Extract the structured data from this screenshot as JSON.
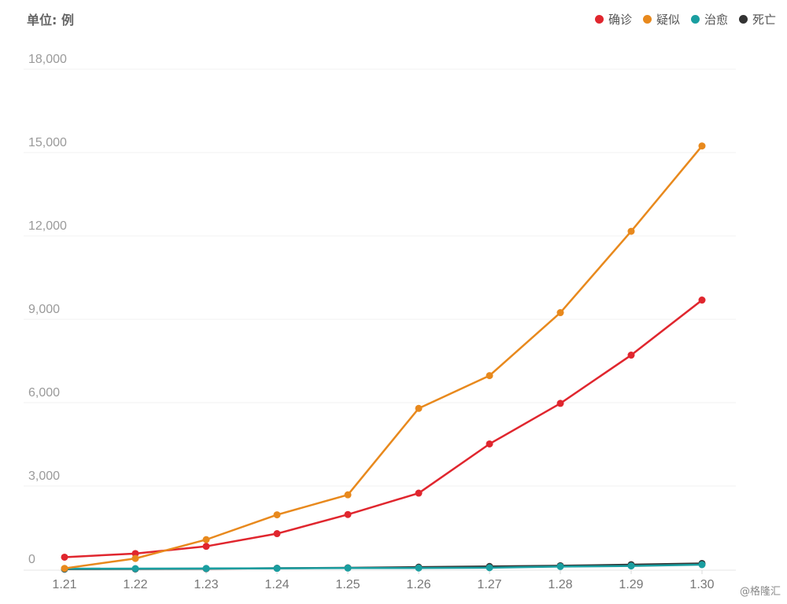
{
  "unit_label": "单位: 例",
  "watermark": "@格隆汇",
  "chart_data": {
    "type": "line",
    "x": [
      "1.21",
      "1.22",
      "1.23",
      "1.24",
      "1.25",
      "1.26",
      "1.27",
      "1.28",
      "1.29",
      "1.30"
    ],
    "ylim": [
      0,
      18000
    ],
    "yticks": [
      0,
      3000,
      6000,
      9000,
      12000,
      15000,
      18000
    ],
    "ytick_labels": [
      "0",
      "3,000",
      "6,000",
      "9,000",
      "12,000",
      "15,000",
      "18,000"
    ],
    "grid": true,
    "legend_position": "top-right",
    "series": [
      {
        "name": "确诊",
        "color": "#e0262e",
        "values": [
          440,
          571,
          830,
          1287,
          1975,
          2744,
          4515,
          5974,
          7711,
          9692
        ]
      },
      {
        "name": "疑似",
        "color": "#e8891d",
        "values": [
          37,
          393,
          1072,
          1965,
          2684,
          5794,
          6973,
          9239,
          12167,
          15238
        ]
      },
      {
        "name": "治愈",
        "color": "#1a9ea0",
        "values": [
          25,
          28,
          34,
          38,
          49,
          51,
          60,
          103,
          124,
          171
        ]
      },
      {
        "name": "死亡",
        "color": "#333333",
        "values": [
          9,
          17,
          25,
          41,
          56,
          80,
          106,
          132,
          170,
          213
        ]
      }
    ]
  }
}
